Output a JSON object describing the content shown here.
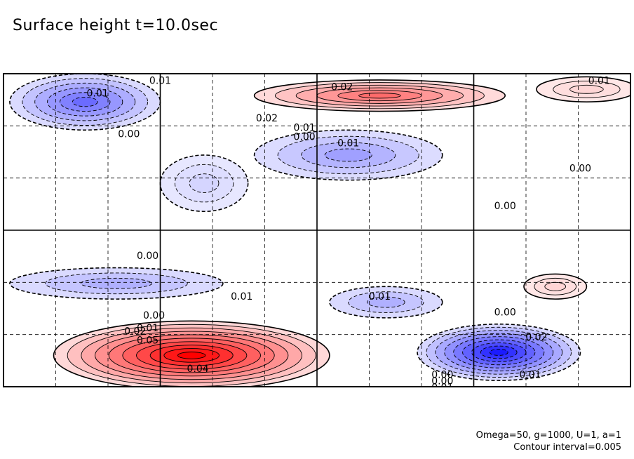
{
  "chart_data": {
    "type": "contour",
    "title": "Surface height t=10.0sec",
    "xlabel": "",
    "ylabel": "",
    "grid": true,
    "contour_interval": 0.005,
    "colors": {
      "positive": "#e00000",
      "negative": "#0000d0",
      "line": "#000000"
    },
    "features": [
      {
        "kind": "low",
        "value": -0.025,
        "location": "upper-left"
      },
      {
        "kind": "low",
        "value": -0.015,
        "location": "upper-center-right"
      },
      {
        "kind": "low",
        "value": -0.005,
        "location": "upper-center-left"
      },
      {
        "kind": "high",
        "value": 0.025,
        "location": "top-center"
      },
      {
        "kind": "high",
        "value": 0.005,
        "location": "top-right"
      },
      {
        "kind": "low",
        "value": -0.012,
        "location": "lower-left"
      },
      {
        "kind": "low",
        "value": -0.012,
        "location": "lower-center"
      },
      {
        "kind": "high",
        "value": 0.045,
        "location": "bottom-left"
      },
      {
        "kind": "low",
        "value": -0.04,
        "location": "bottom-right"
      },
      {
        "kind": "high",
        "value": 0.005,
        "location": "lower-right"
      }
    ],
    "contour_labels": [
      "0.01",
      "0.01",
      "0.00",
      "0.02",
      "0.02",
      "0.01",
      "0.00",
      "0.01",
      "0.01",
      "0.00",
      "0.00",
      "0.00",
      "0.00",
      "0.01",
      "0.01",
      "0.00",
      "0.00",
      "0.02",
      "0.01",
      "0.05",
      "0.04",
      "0.02",
      "0.00",
      "0.01",
      "0.01"
    ],
    "annotations": [
      "Omega=50, g=1000, U=1, a=1",
      "Contour interval=0.005"
    ]
  }
}
